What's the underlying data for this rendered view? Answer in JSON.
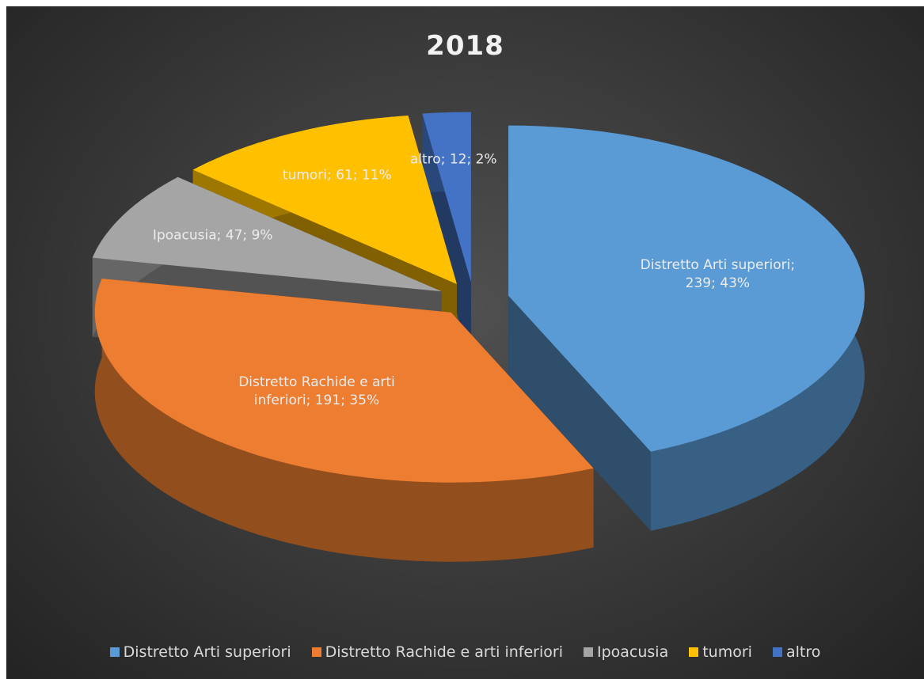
{
  "chart_data": {
    "type": "pie",
    "title": "2018",
    "categories": [
      "Distretto Arti superiori",
      "Distretto Rachide e arti inferiori",
      "Ipoacusia",
      "tumori",
      "altro"
    ],
    "values": [
      239,
      191,
      47,
      61,
      12
    ],
    "value_labels": [
      "Distretto Arti superiori; 239; 43%",
      "Distretto Rachide e arti inferiori; 191; 35%",
      "Ipoacusia; 47; 9%",
      "tumori; 61; 11%",
      "altro; 12; 2%"
    ],
    "colors": [
      "#5b9bd5",
      "#ed7d31",
      "#a5a5a5",
      "#ffc000",
      "#4472c4"
    ],
    "legend": "bottom"
  }
}
